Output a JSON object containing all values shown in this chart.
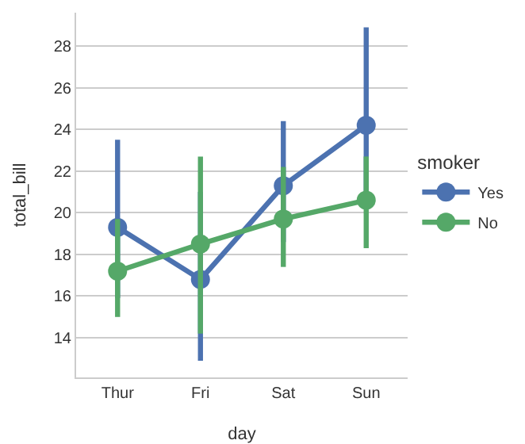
{
  "chart_data": {
    "type": "line",
    "xlabel": "day",
    "ylabel": "total_bill",
    "legend_title": "smoker",
    "categories": [
      "Thur",
      "Fri",
      "Sat",
      "Sun"
    ],
    "series": [
      {
        "name": "Yes",
        "color": "#4c72b0",
        "values": [
          19.3,
          16.8,
          21.3,
          24.2
        ],
        "errors": [
          [
            15.9,
            23.5
          ],
          [
            12.9,
            21.0
          ],
          [
            18.6,
            24.4
          ],
          [
            20.3,
            28.9
          ]
        ]
      },
      {
        "name": "No",
        "color": "#55a868",
        "values": [
          17.2,
          18.5,
          19.7,
          20.6
        ],
        "errors": [
          [
            15.0,
            19.7
          ],
          [
            14.2,
            22.7
          ],
          [
            17.4,
            22.2
          ],
          [
            18.3,
            22.7
          ]
        ]
      }
    ],
    "ylim": [
      12.1,
      29.6
    ],
    "yticks": [
      14,
      16,
      18,
      20,
      22,
      24,
      26,
      28
    ],
    "grid": "y",
    "legend": "right",
    "marker": "circle",
    "line_style": "solid"
  }
}
